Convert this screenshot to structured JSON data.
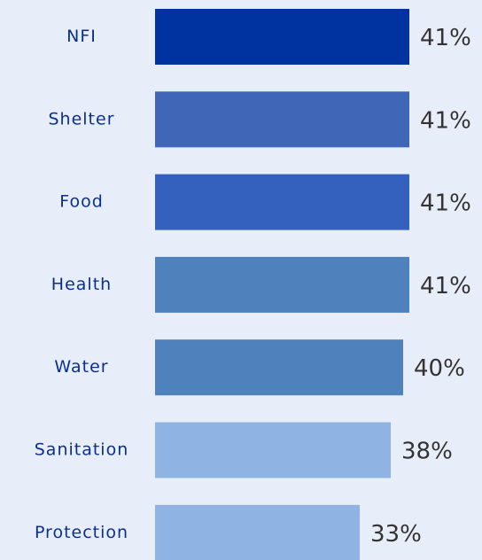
{
  "chart_data": {
    "type": "hbar",
    "categories": [
      "NFI",
      "Shelter",
      "Food",
      "Health",
      "Water",
      "Sanitation",
      "Protection"
    ],
    "values": [
      41,
      41,
      41,
      41,
      40,
      38,
      33
    ],
    "value_labels": [
      "41%",
      "41%",
      "41%",
      "41%",
      "40%",
      "38%",
      "33%"
    ],
    "colors": [
      "#0033a0",
      "#4066b8",
      "#3461bd",
      "#4f81bd",
      "#4f81bd",
      "#8fb4e3",
      "#8fb4e3"
    ]
  }
}
